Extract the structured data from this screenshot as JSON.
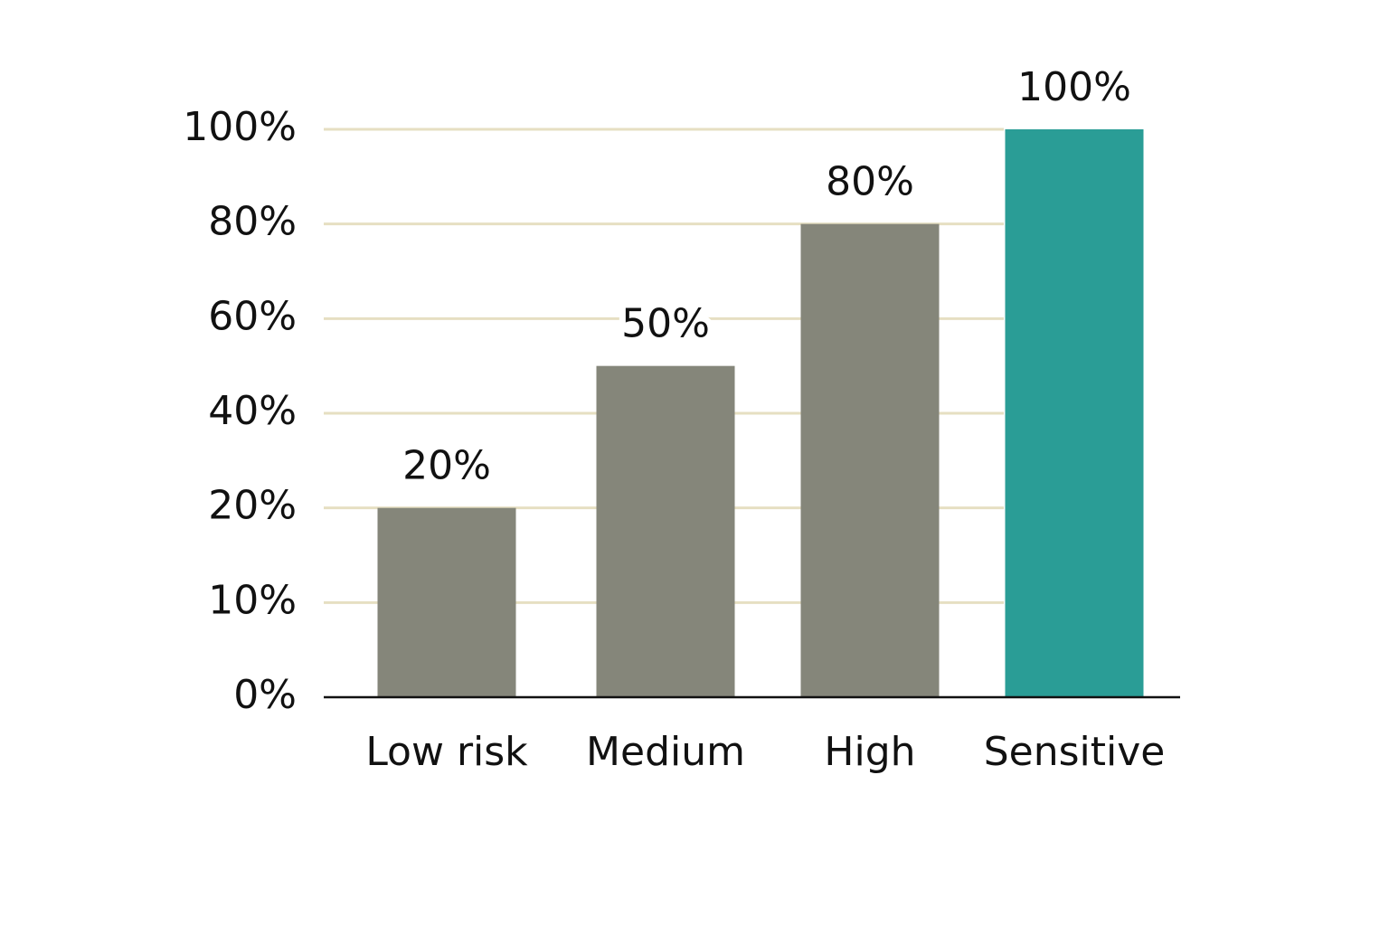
{
  "chart_data": {
    "type": "bar",
    "categories": [
      "Low risk",
      "Medium",
      "High",
      "Sensitive"
    ],
    "values": [
      20,
      50,
      80,
      100
    ],
    "value_labels": [
      "20%",
      "50%",
      "80%",
      "100%"
    ],
    "colors": [
      "#85867a",
      "#85867a",
      "#85867a",
      "#2a9d96"
    ],
    "ylim": [
      0,
      100
    ],
    "yticks": [
      {
        "value": 0,
        "label": "0%"
      },
      {
        "value": 10,
        "label": "10%"
      },
      {
        "value": 20,
        "label": "20%"
      },
      {
        "value": 40,
        "label": "40%"
      },
      {
        "value": 60,
        "label": "60%"
      },
      {
        "value": 80,
        "label": "80%"
      },
      {
        "value": 100,
        "label": "100%"
      }
    ],
    "grid": true
  }
}
